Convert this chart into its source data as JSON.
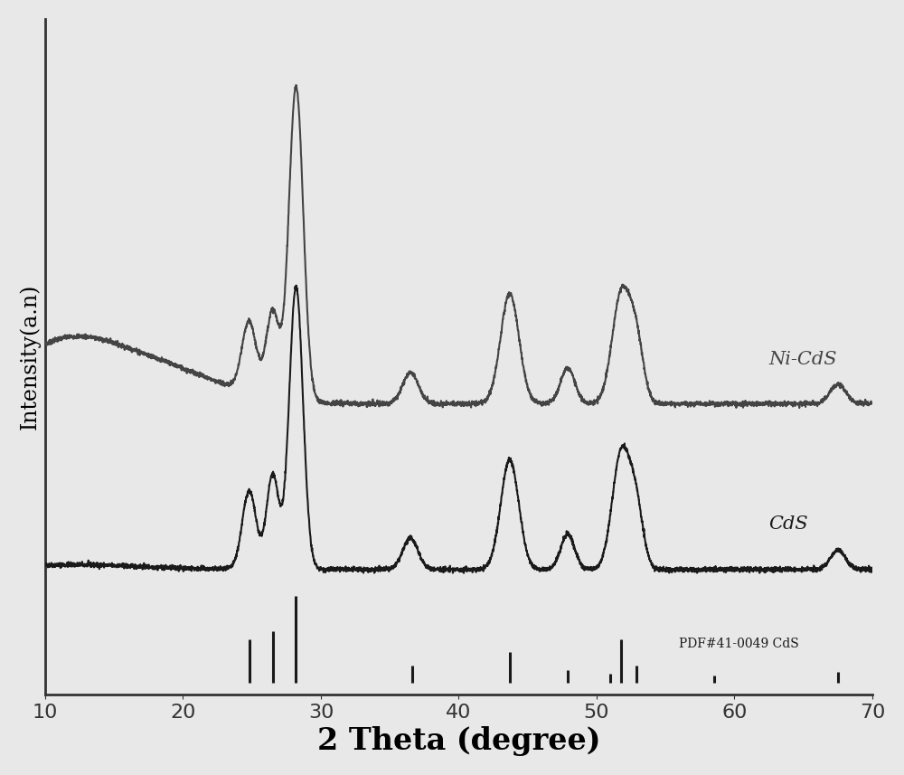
{
  "xlabel": "2 Theta (degree)",
  "ylabel": "Intensity(a.n)",
  "xlim": [
    10,
    70
  ],
  "xlabel_fontsize": 24,
  "ylabel_fontsize": 17,
  "tick_fontsize": 16,
  "line_color_cds": "#1a1a1a",
  "line_color_nicds": "#444444",
  "label_NiCdS": "Ni-CdS",
  "label_CdS": "CdS",
  "label_PDF": "PDF#41-0049 CdS",
  "background_color": "#e8e8e8",
  "cds_baseline": 0.3,
  "nicds_baseline": 0.72,
  "cds_peaks_centers": [
    24.8,
    26.5,
    28.2,
    36.5,
    43.7,
    47.9,
    51.8,
    52.9,
    67.5
  ],
  "cds_peaks_heights": [
    0.2,
    0.24,
    0.72,
    0.08,
    0.28,
    0.09,
    0.3,
    0.14,
    0.05
  ],
  "cds_peaks_widths": [
    0.5,
    0.45,
    0.5,
    0.55,
    0.65,
    0.5,
    0.65,
    0.5,
    0.55
  ],
  "nicds_peaks_centers": [
    24.8,
    26.5,
    28.2,
    36.5,
    43.7,
    47.9,
    51.8,
    52.9,
    67.5
  ],
  "nicds_peaks_heights": [
    0.18,
    0.22,
    0.8,
    0.08,
    0.28,
    0.09,
    0.28,
    0.14,
    0.05
  ],
  "nicds_peaks_widths": [
    0.52,
    0.48,
    0.52,
    0.57,
    0.67,
    0.52,
    0.67,
    0.52,
    0.57
  ],
  "pdf_peaks": [
    24.8,
    26.5,
    28.2,
    36.6,
    43.7,
    47.9,
    51.0,
    51.8,
    52.9,
    58.5,
    67.5
  ],
  "pdf_heights": [
    0.5,
    0.6,
    1.0,
    0.2,
    0.35,
    0.15,
    0.1,
    0.5,
    0.2,
    0.08,
    0.12
  ]
}
